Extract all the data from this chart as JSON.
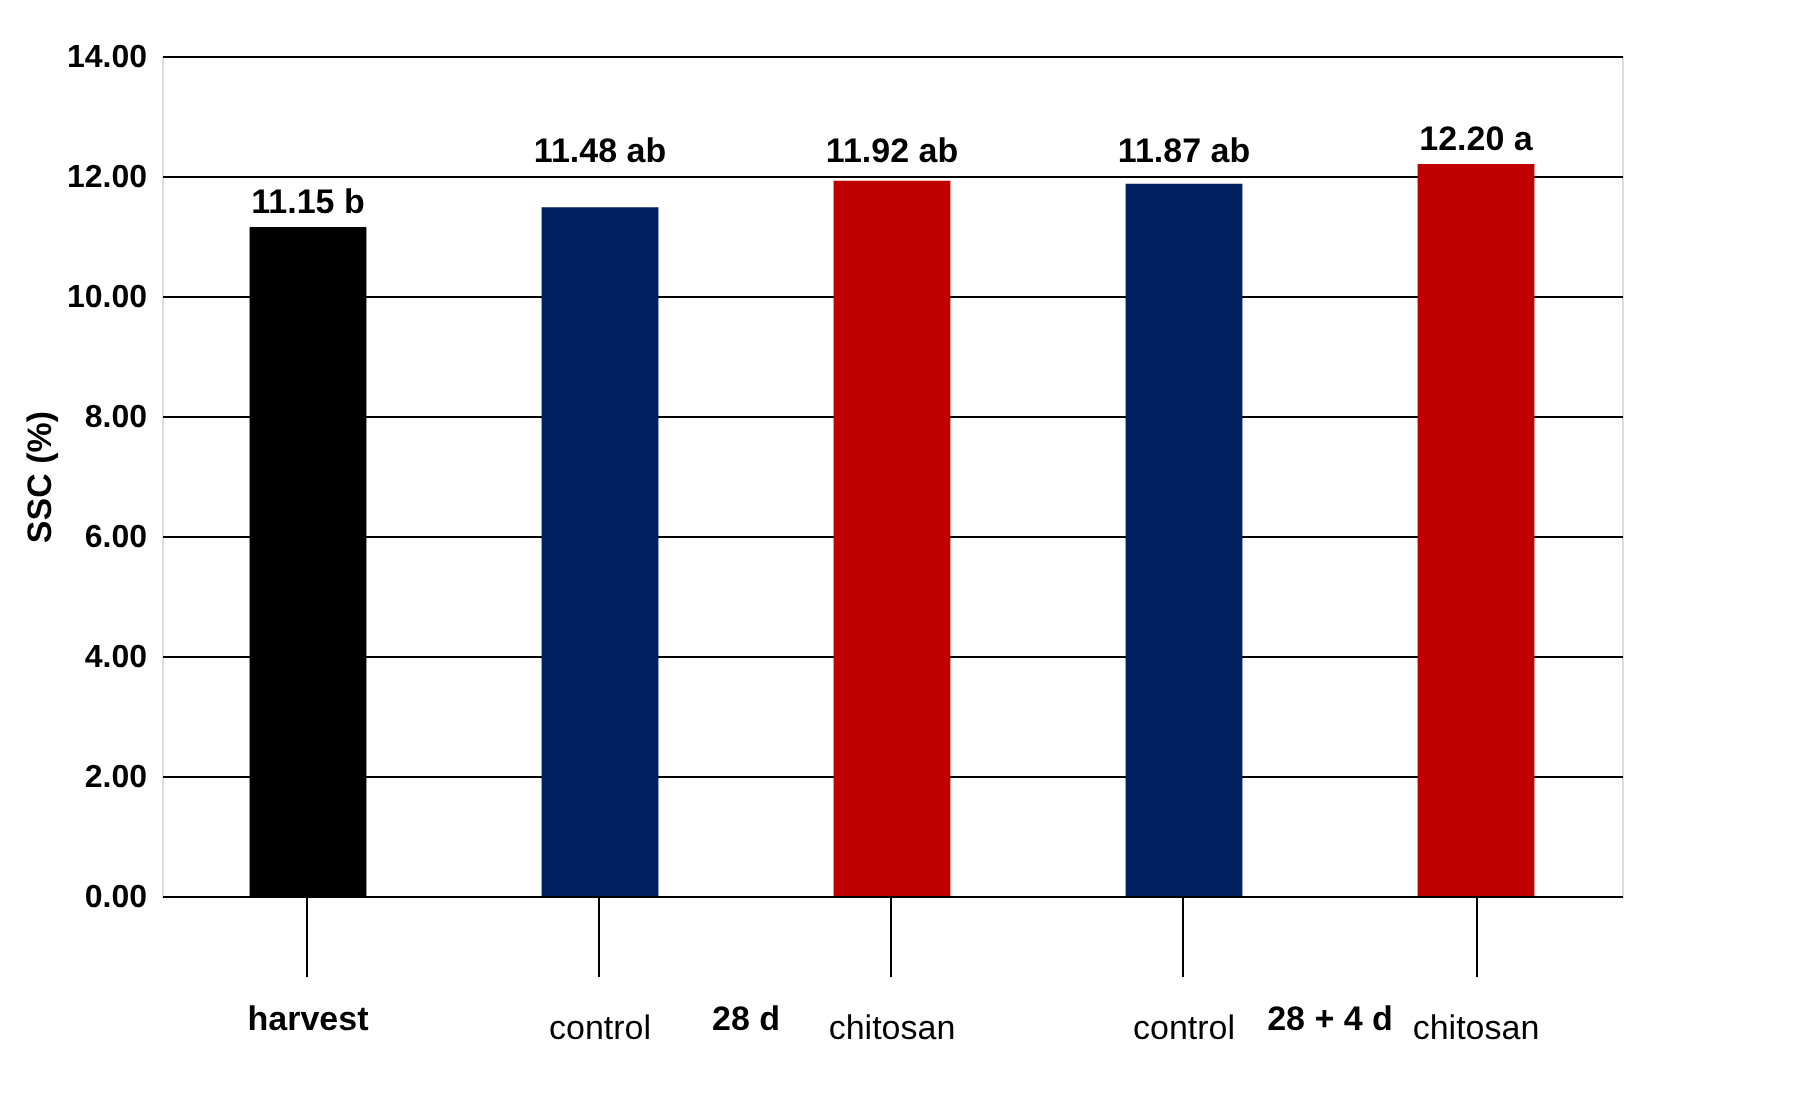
{
  "chart_data": {
    "type": "bar",
    "ylabel": "SSC (%)",
    "categories": [
      null,
      "control",
      "chitosan",
      "control",
      "chitosan"
    ],
    "values": [
      11.15,
      11.48,
      11.92,
      11.87,
      12.2
    ],
    "colors": [
      "#000000",
      "#002060",
      "#c00000",
      "#002060",
      "#c00000"
    ],
    "value_labels": [
      "11.15 b",
      "11.48 ab",
      "11.92 ab",
      "11.87 ab",
      "12.20 a"
    ],
    "annotations": [
      "harvest",
      "28 d",
      "28 + 4 d"
    ],
    "ylim": [
      0,
      14
    ],
    "yticks": [
      {
        "value": 0,
        "label": "0.00"
      },
      {
        "value": 2,
        "label": "2.00"
      },
      {
        "value": 4,
        "label": "4.00"
      },
      {
        "value": 6,
        "label": "6.00"
      },
      {
        "value": 8,
        "label": "8.00"
      },
      {
        "value": 10,
        "label": "10.00"
      },
      {
        "value": 12,
        "label": "12.00"
      },
      {
        "value": 14,
        "label": "14.00"
      }
    ],
    "grid": "y"
  }
}
